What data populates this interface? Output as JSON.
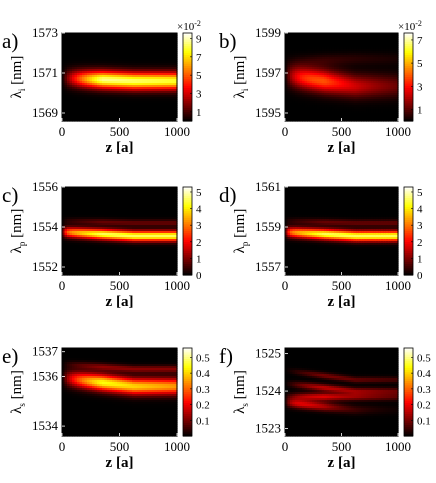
{
  "chart_data": [
    {
      "panel": "a)",
      "type": "heatmap",
      "xlabel": "z [a]",
      "ylabel_main": "λ",
      "ylabel_sub": "i",
      "ylabel_unit": "[nm]",
      "xticks": [
        "0",
        "500",
        "1000"
      ],
      "xlim": [
        0,
        1000
      ],
      "yticks": [
        "1573",
        "1571",
        "1569"
      ],
      "ylim": [
        1568.6,
        1573
      ],
      "colorbar_ticks": [
        "9",
        "7",
        "5",
        "3",
        "1"
      ],
      "colorbar_range": [
        0,
        9.6
      ],
      "colorbar_exponent": "×10",
      "colorbar_exponent_power": "-2",
      "bands": [
        {
          "center_start": 1570.75,
          "center_end": 1570.6,
          "width": 0.42,
          "peak": 1.0,
          "rise": 90,
          "decay": 6000,
          "ramp_from": 0.05,
          "ramp_to": 0.95,
          "slope_end": 0
        }
      ]
    },
    {
      "panel": "b)",
      "type": "heatmap",
      "xlabel": "z [a]",
      "ylabel_main": "λ",
      "ylabel_sub": "i",
      "ylabel_unit": "[nm]",
      "xticks": [
        "0",
        "500",
        "1000"
      ],
      "xlim": [
        0,
        1000
      ],
      "yticks": [
        "1599",
        "1597",
        "1595"
      ],
      "ylim": [
        1594.6,
        1599
      ],
      "colorbar_ticks": [
        "7",
        "5",
        "3",
        "1"
      ],
      "colorbar_range": [
        0,
        7.6
      ],
      "colorbar_exponent": "×10",
      "colorbar_exponent_power": "-2",
      "bands": [
        {
          "center_start": 1596.9,
          "center_end": 1596.35,
          "width": 0.55,
          "peak": 1.0,
          "rise": 70,
          "decay": 550,
          "ramp_from": 0.05,
          "ramp_to": 0.95,
          "slope_end": 0
        },
        {
          "center_start": 1597.55,
          "center_end": 1597.7,
          "width": 0.3,
          "peak": 0.15,
          "rise": 200,
          "decay": 700,
          "ramp_from": 0,
          "ramp_to": 1,
          "slope_end": 0
        }
      ]
    },
    {
      "panel": "c)",
      "type": "heatmap",
      "xlabel": "z [a]",
      "ylabel_main": "λ",
      "ylabel_sub": "p",
      "ylabel_unit": "[nm]",
      "xticks": [
        "0",
        "500",
        "1000"
      ],
      "xlim": [
        0,
        1000
      ],
      "yticks": [
        "1556",
        "1554",
        "1552"
      ],
      "ylim": [
        1551.6,
        1556
      ],
      "colorbar_ticks": [
        "5",
        "4",
        "3",
        "2",
        "1",
        "0"
      ],
      "colorbar_range": [
        0,
        5.3
      ],
      "colorbar_exponent": "",
      "colorbar_exponent_power": "",
      "bands": [
        {
          "center_start": 1553.75,
          "center_end": 1553.55,
          "width": 0.25,
          "peak": 0.92,
          "rise": 25,
          "decay": 99999,
          "ramp_from": 0.4,
          "ramp_to": 0.9,
          "slope_end": 0
        },
        {
          "center_start": 1554.3,
          "center_end": 1554.2,
          "width": 0.16,
          "peak": 0.15,
          "rise": 25,
          "decay": 99999,
          "ramp_from": 0,
          "ramp_to": 1,
          "slope_end": 0
        }
      ]
    },
    {
      "panel": "d)",
      "type": "heatmap",
      "xlabel": "z [a]",
      "ylabel_main": "λ",
      "ylabel_sub": "p",
      "ylabel_unit": "[nm]",
      "xticks": [
        "0",
        "500",
        "1000"
      ],
      "xlim": [
        0,
        1000
      ],
      "yticks": [
        "1561",
        "1559",
        "1557"
      ],
      "ylim": [
        1556.6,
        1561
      ],
      "colorbar_ticks": [
        "5",
        "4",
        "3",
        "2",
        "1",
        "0"
      ],
      "colorbar_range": [
        0,
        5.3
      ],
      "colorbar_exponent": "",
      "colorbar_exponent_power": "",
      "bands": [
        {
          "center_start": 1558.75,
          "center_end": 1558.55,
          "width": 0.25,
          "peak": 0.92,
          "rise": 25,
          "decay": 99999,
          "ramp_from": 0.4,
          "ramp_to": 0.9,
          "slope_end": 0
        },
        {
          "center_start": 1559.3,
          "center_end": 1559.2,
          "width": 0.16,
          "peak": 0.15,
          "rise": 25,
          "decay": 99999,
          "ramp_from": 0,
          "ramp_to": 1,
          "slope_end": 0
        }
      ]
    },
    {
      "panel": "e)",
      "type": "heatmap",
      "xlabel": "z [a]",
      "ylabel_main": "λ",
      "ylabel_sub": "s",
      "ylabel_unit": "[nm]",
      "xticks": [
        "0",
        "500",
        "1000"
      ],
      "xlim": [
        0,
        1000
      ],
      "yticks": [
        "1537",
        "1536",
        "1534"
      ],
      "ylim": [
        1533.6,
        1537.15
      ],
      "colorbar_ticks": [
        "0.5",
        "0.4",
        "0.3",
        "0.2",
        "0.1"
      ],
      "colorbar_range": [
        0,
        0.56
      ],
      "colorbar_exponent": "",
      "colorbar_exponent_power": "",
      "bands": [
        {
          "center_start": 1535.95,
          "center_end": 1535.6,
          "width": 0.32,
          "peak": 0.95,
          "rise": 70,
          "decay": 2500,
          "ramp_from": 0.1,
          "ramp_to": 0.95,
          "slope_end": 0
        },
        {
          "center_start": 1536.5,
          "center_end": 1536.3,
          "width": 0.14,
          "peak": 0.2,
          "rise": 60,
          "decay": 99999,
          "ramp_from": 0,
          "ramp_to": 1,
          "slope_end": 0
        }
      ]
    },
    {
      "panel": "f)",
      "type": "heatmap",
      "xlabel": "z [a]",
      "ylabel_main": "λ",
      "ylabel_sub": "s",
      "ylabel_unit": "[nm]",
      "xticks": [
        "0",
        "500",
        "1000"
      ],
      "xlim": [
        0,
        1000
      ],
      "yticks": [
        "1525",
        "1524",
        "1523"
      ],
      "ylim": [
        1522.8,
        1525.15
      ],
      "colorbar_ticks": [
        "0.5",
        "0.4",
        "0.3",
        "0.2",
        "0.1"
      ],
      "colorbar_range": [
        0,
        0.56
      ],
      "colorbar_exponent": "",
      "colorbar_exponent_power": "",
      "bands": [
        {
          "center_start": 1523.7,
          "center_end": 1523.5,
          "width": 0.12,
          "peak": 1.0,
          "rise": 50,
          "decay": 260,
          "ramp_from": 0,
          "ramp_to": 1,
          "slope_end": 0
        },
        {
          "center_start": 1523.85,
          "center_end": 1523.85,
          "width": 0.1,
          "peak": 0.55,
          "rise": 80,
          "decay": 700,
          "ramp_from": 0,
          "ramp_to": 1,
          "slope_end": 0
        },
        {
          "center_start": 1524.2,
          "center_end": 1524.0,
          "width": 0.09,
          "peak": 0.45,
          "rise": 120,
          "decay": 900,
          "ramp_from": 0,
          "ramp_to": 1,
          "slope_end": 0
        },
        {
          "center_start": 1524.55,
          "center_end": 1524.3,
          "width": 0.08,
          "peak": 0.28,
          "rise": 150,
          "decay": 1000,
          "ramp_from": 0,
          "ramp_to": 1,
          "slope_end": 0
        }
      ]
    }
  ]
}
